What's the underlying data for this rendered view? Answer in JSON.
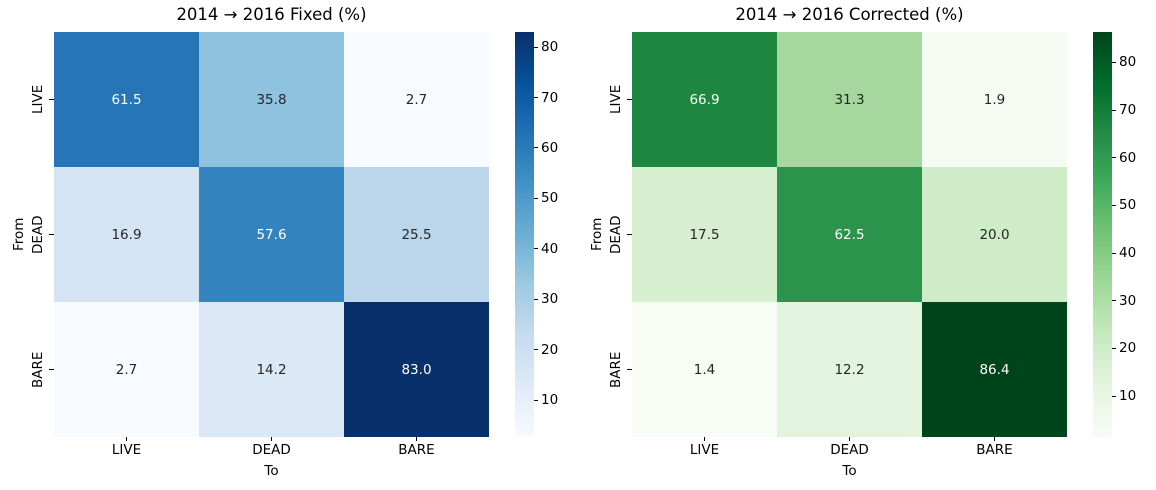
{
  "chart_data": [
    {
      "type": "heatmap",
      "title": "2014 → 2016 Fixed (%)",
      "xlabel": "To",
      "ylabel": "From",
      "x_categories": [
        "LIVE",
        "DEAD",
        "BARE"
      ],
      "y_categories": [
        "LIVE",
        "DEAD",
        "BARE"
      ],
      "values": [
        [
          61.5,
          35.8,
          2.7
        ],
        [
          16.9,
          57.6,
          25.5
        ],
        [
          2.7,
          14.2,
          83.0
        ]
      ],
      "colormap": "Blues",
      "vmin": 2.7,
      "vmax": 83.0,
      "colorbar_ticks": [
        10,
        20,
        30,
        40,
        50,
        60,
        70,
        80
      ],
      "annotated": true,
      "grid": false
    },
    {
      "type": "heatmap",
      "title": "2014 → 2016 Corrected (%)",
      "xlabel": "To",
      "ylabel": "From",
      "x_categories": [
        "LIVE",
        "DEAD",
        "BARE"
      ],
      "y_categories": [
        "LIVE",
        "DEAD",
        "BARE"
      ],
      "values": [
        [
          66.9,
          31.3,
          1.9
        ],
        [
          17.5,
          62.5,
          20.0
        ],
        [
          1.4,
          12.2,
          86.4
        ]
      ],
      "colormap": "Greens",
      "vmin": 1.4,
      "vmax": 86.4,
      "colorbar_ticks": [
        10,
        20,
        30,
        40,
        50,
        60,
        70,
        80
      ],
      "annotated": true,
      "grid": false
    }
  ],
  "figure": {
    "panels": [
      {
        "title": "2014 → 2016 Fixed (%)",
        "xlabel": "To",
        "ylabel": "From",
        "x_categories": [
          "LIVE",
          "DEAD",
          "BARE"
        ],
        "y_categories": [
          "LIVE",
          "DEAD",
          "BARE"
        ],
        "cell_labels": [
          [
            "61.5",
            "35.8",
            "2.7"
          ],
          [
            "16.9",
            "57.6",
            "25.5"
          ],
          [
            "2.7",
            "14.2",
            "83.0"
          ]
        ],
        "cell_colors": [
          [
            "#2676b7",
            "#8fc2de",
            "#f7fbff"
          ],
          [
            "#d4e4f4",
            "#3383be",
            "#bbd6eb"
          ],
          [
            "#f7fbff",
            "#dbe9f6",
            "#08306b"
          ]
        ],
        "text_colors": [
          [
            "#ffffff",
            "#262626",
            "#262626"
          ],
          [
            "#262626",
            "#ffffff",
            "#262626"
          ],
          [
            "#262626",
            "#262626",
            "#ffffff"
          ]
        ],
        "colormap_stops": [
          "#08306b",
          "#08519c",
          "#2171b5",
          "#4292c6",
          "#6baed6",
          "#9ecae1",
          "#c6dbef",
          "#deebf7",
          "#f7fbff"
        ],
        "colorbar_ticks": [
          {
            "label": "80",
            "pos": 3.74
          },
          {
            "label": "70",
            "pos": 16.19
          },
          {
            "label": "60",
            "pos": 28.64
          },
          {
            "label": "50",
            "pos": 41.1
          },
          {
            "label": "40",
            "pos": 53.55
          },
          {
            "label": "30",
            "pos": 66.0
          },
          {
            "label": "20",
            "pos": 78.46
          },
          {
            "label": "10",
            "pos": 90.91
          }
        ]
      },
      {
        "title": "2014 → 2016 Corrected (%)",
        "xlabel": "To",
        "ylabel": "From",
        "x_categories": [
          "LIVE",
          "DEAD",
          "BARE"
        ],
        "y_categories": [
          "LIVE",
          "DEAD",
          "BARE"
        ],
        "cell_labels": [
          [
            "66.9",
            "31.3",
            "1.9"
          ],
          [
            "17.5",
            "62.5",
            "20.0"
          ],
          [
            "1.4",
            "12.2",
            "86.4"
          ]
        ],
        "cell_colors": [
          [
            "#1d8641",
            "#a5d79f",
            "#f6fbf4"
          ],
          [
            "#d6efcf",
            "#2b934b",
            "#cfecc8"
          ],
          [
            "#f7fcf5",
            "#e3f4de",
            "#00441b"
          ]
        ],
        "text_colors": [
          [
            "#ffffff",
            "#262626",
            "#262626"
          ],
          [
            "#262626",
            "#ffffff",
            "#262626"
          ],
          [
            "#262626",
            "#262626",
            "#ffffff"
          ]
        ],
        "colormap_stops": [
          "#00441b",
          "#006d2c",
          "#238b45",
          "#41ab5d",
          "#74c476",
          "#a1d99b",
          "#c7e9c0",
          "#e5f5e0",
          "#f7fcf5"
        ],
        "colorbar_ticks": [
          {
            "label": "80",
            "pos": 7.53
          },
          {
            "label": "70",
            "pos": 19.29
          },
          {
            "label": "60",
            "pos": 31.06
          },
          {
            "label": "50",
            "pos": 42.82
          },
          {
            "label": "40",
            "pos": 54.59
          },
          {
            "label": "30",
            "pos": 66.35
          },
          {
            "label": "20",
            "pos": 78.12
          },
          {
            "label": "10",
            "pos": 89.88
          }
        ]
      }
    ]
  }
}
